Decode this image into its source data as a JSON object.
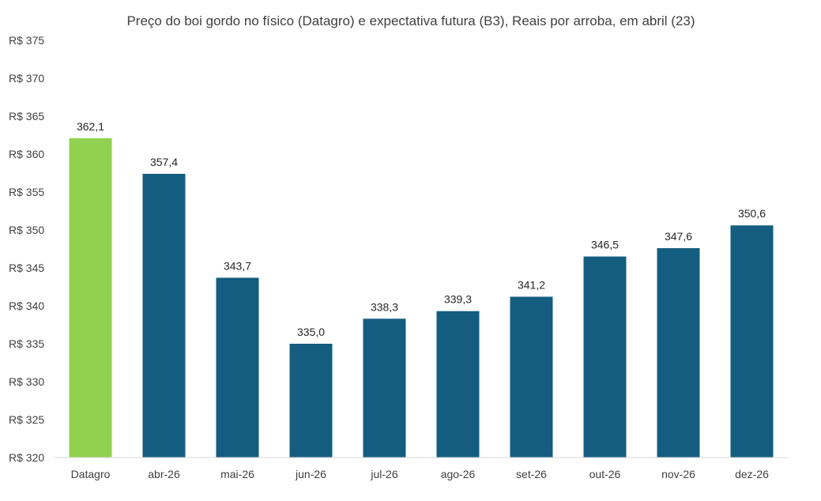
{
  "chart_data": {
    "type": "bar",
    "title": "Preço do boi gordo no físico (Datagro)  e expectativa futura (B3), Reais por arroba, em abril (23)",
    "xlabel": "",
    "ylabel": "",
    "ylim": [
      320,
      375
    ],
    "ytick_values": [
      320,
      325,
      330,
      335,
      340,
      345,
      350,
      355,
      360,
      365,
      370,
      375
    ],
    "ytick_labels": [
      "R$ 320",
      "R$ 325",
      "R$ 330",
      "R$ 335",
      "R$ 340",
      "R$ 345",
      "R$ 350",
      "R$ 355",
      "R$ 360",
      "R$ 365",
      "R$ 370",
      "R$ 375"
    ],
    "categories": [
      "Datagro",
      "abr-26",
      "mai-26",
      "jun-26",
      "jul-26",
      "ago-26",
      "set-26",
      "out-26",
      "nov-26",
      "dez-26"
    ],
    "values": [
      362.1,
      357.4,
      343.7,
      335.0,
      338.3,
      339.3,
      341.2,
      346.5,
      347.6,
      350.6
    ],
    "value_labels": [
      "362,1",
      "357,4",
      "343,7",
      "335,0",
      "338,3",
      "339,3",
      "341,2",
      "346,5",
      "347,6",
      "350,6"
    ],
    "colors": [
      "#92d050",
      "#145d80",
      "#145d80",
      "#145d80",
      "#145d80",
      "#145d80",
      "#145d80",
      "#145d80",
      "#145d80",
      "#145d80"
    ],
    "axis_color": "#d9d9d9",
    "grid": false,
    "legend": "none"
  }
}
